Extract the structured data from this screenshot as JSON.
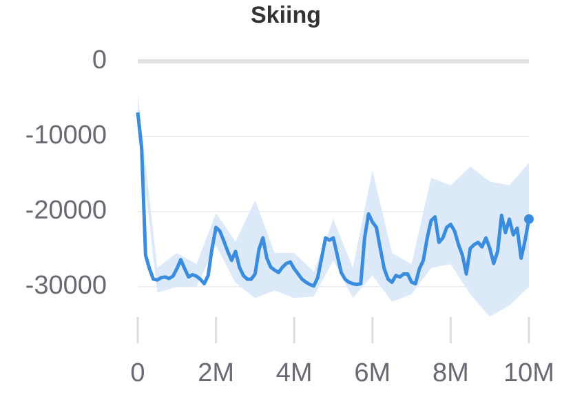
{
  "chart_data": {
    "type": "line",
    "title": "Skiing",
    "x": [
      0,
      100000,
      200000,
      300000,
      400000,
      500000,
      600000,
      700000,
      800000,
      900000,
      1000000,
      1100000,
      1200000,
      1300000,
      1400000,
      1500000,
      1600000,
      1700000,
      1800000,
      1900000,
      2000000,
      2100000,
      2200000,
      2300000,
      2400000,
      2500000,
      2600000,
      2700000,
      2800000,
      2900000,
      3000000,
      3100000,
      3200000,
      3300000,
      3400000,
      3500000,
      3600000,
      3700000,
      3800000,
      3900000,
      4000000,
      4100000,
      4200000,
      4300000,
      4400000,
      4500000,
      4600000,
      4700000,
      4800000,
      4900000,
      5000000,
      5100000,
      5200000,
      5300000,
      5400000,
      5500000,
      5600000,
      5700000,
      5800000,
      5900000,
      6000000,
      6100000,
      6200000,
      6300000,
      6400000,
      6500000,
      6600000,
      6700000,
      6800000,
      6900000,
      7000000,
      7100000,
      7200000,
      7300000,
      7400000,
      7500000,
      7600000,
      7700000,
      7800000,
      7900000,
      8000000,
      8100000,
      8200000,
      8300000,
      8400000,
      8500000,
      8600000,
      8700000,
      8800000,
      8900000,
      9000000,
      9100000,
      9200000,
      9300000,
      9400000,
      9500000,
      9600000,
      9700000,
      9800000,
      9900000,
      10000000
    ],
    "series": [
      {
        "color": "#3a8dde",
        "values": [
          -6800,
          -11600,
          -25800,
          -27600,
          -29000,
          -29100,
          -28800,
          -28700,
          -28900,
          -28600,
          -27600,
          -26400,
          -27600,
          -28700,
          -28400,
          -28600,
          -29000,
          -29600,
          -28500,
          -24900,
          -22100,
          -22600,
          -23900,
          -25300,
          -26500,
          -25300,
          -27400,
          -28500,
          -29000,
          -29000,
          -28300,
          -25000,
          -23500,
          -26200,
          -27400,
          -27800,
          -28100,
          -27400,
          -26900,
          -26700,
          -27600,
          -28300,
          -29000,
          -29400,
          -29700,
          -29900,
          -28800,
          -26200,
          -23500,
          -23800,
          -23500,
          -25800,
          -28100,
          -29000,
          -29400,
          -29600,
          -29700,
          -29600,
          -23500,
          -20300,
          -21400,
          -22100,
          -24900,
          -27600,
          -29000,
          -29400,
          -28500,
          -28700,
          -28300,
          -28300,
          -29400,
          -29600,
          -27600,
          -26500,
          -23500,
          -21200,
          -20700,
          -24100,
          -23500,
          -22100,
          -21700,
          -22600,
          -24400,
          -25800,
          -28300,
          -24900,
          -24400,
          -24100,
          -24700,
          -23500,
          -24900,
          -26900,
          -25300,
          -20500,
          -22800,
          -21000,
          -23100,
          -22200,
          -26200,
          -23900,
          -21000
        ]
      }
    ],
    "band": {
      "color": "#dbe9f9",
      "x": [
        0,
        500000,
        1000000,
        1500000,
        2000000,
        2500000,
        3000000,
        3500000,
        4000000,
        4500000,
        5000000,
        5500000,
        6000000,
        6500000,
        7000000,
        7500000,
        8000000,
        8500000,
        9000000,
        9500000,
        10000000
      ],
      "high": [
        -4500,
        -27500,
        -25500,
        -27000,
        -20200,
        -24000,
        -18500,
        -25500,
        -25500,
        -28000,
        -21000,
        -27500,
        -14500,
        -25500,
        -27000,
        -15500,
        -16500,
        -14000,
        -16000,
        -16500,
        -13500
      ],
      "low": [
        -8000,
        -30800,
        -30000,
        -30000,
        -24500,
        -29500,
        -31500,
        -30500,
        -31500,
        -31300,
        -26500,
        -31500,
        -28500,
        -32000,
        -31000,
        -27500,
        -27000,
        -31000,
        -34000,
        -32500,
        -30000
      ]
    },
    "xlim": [
      0,
      10000000
    ],
    "xticks": [
      0,
      {
        "value": 2000000,
        "label": "2M"
      },
      {
        "value": 4000000,
        "label": "4M"
      },
      {
        "value": 6000000,
        "label": "6M"
      },
      {
        "value": 8000000,
        "label": "8M"
      },
      {
        "value": 10000000,
        "label": "10M"
      }
    ],
    "ylim": [
      -35000,
      0
    ],
    "yticks": [
      0,
      -10000,
      -20000,
      -30000
    ],
    "grid": true
  }
}
